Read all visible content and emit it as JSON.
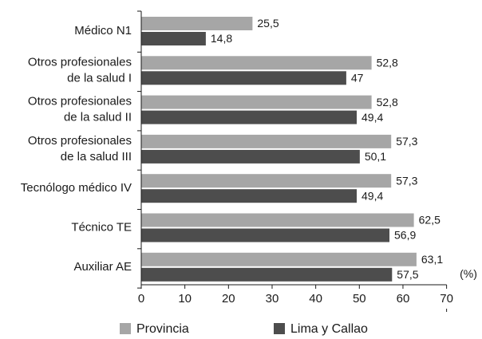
{
  "chart_data": {
    "type": "bar",
    "orientation": "horizontal",
    "categories": [
      [
        "Médico N1"
      ],
      [
        "Otros profesionales",
        "de la salud I"
      ],
      [
        "Otros profesionales",
        "de la salud II"
      ],
      [
        "Otros profesionales",
        "de la salud III"
      ],
      [
        "Tecnólogo médico IV"
      ],
      [
        "Técnico TE"
      ],
      [
        "Auxiliar AE"
      ]
    ],
    "series": [
      {
        "name": "Provincia",
        "color": "#a6a6a6",
        "values": [
          25.5,
          52.8,
          52.8,
          57.3,
          57.3,
          62.5,
          63.1
        ],
        "labels": [
          "25,5",
          "52,8",
          "52,8",
          "57,3",
          "57,3",
          "62,5",
          "63,1"
        ]
      },
      {
        "name": "Lima y Callao",
        "color": "#4d4d4d",
        "values": [
          14.8,
          47,
          49.4,
          50.1,
          49.4,
          56.9,
          57.5
        ],
        "labels": [
          "14,8",
          "47",
          "49,4",
          "50,1",
          "49,4",
          "56,9",
          "57,5"
        ]
      }
    ],
    "xlim": [
      0,
      70
    ],
    "xticks": [
      0,
      10,
      20,
      30,
      40,
      50,
      60,
      70
    ],
    "unit_label": "(%)",
    "legend_position": "bottom",
    "grid": false
  }
}
